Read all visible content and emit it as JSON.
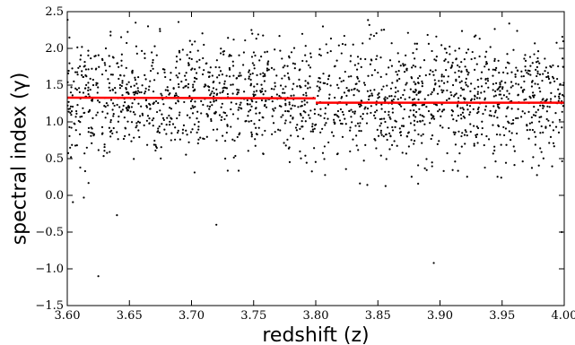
{
  "chart_data": {
    "type": "scatter",
    "title": "",
    "xlabel": "redshift (z)",
    "ylabel": "spectral index (γ)",
    "xlim": [
      3.6,
      4.0
    ],
    "ylim": [
      -1.5,
      2.5
    ],
    "x_ticks": [
      "3.60",
      "3.65",
      "3.70",
      "3.75",
      "3.80",
      "3.85",
      "3.90",
      "3.95",
      "4.00"
    ],
    "y_ticks": [
      "−1.5",
      "−1.0",
      "−0.5",
      "0.0",
      "0.5",
      "1.0",
      "1.5",
      "2.0",
      "2.5"
    ],
    "grid": false,
    "point_color": "#000000",
    "line_color": "#ff0000",
    "scatter_model": {
      "n_points": 1800,
      "x_range": [
        3.6,
        4.0
      ],
      "y_center": 1.3,
      "y_spread": 0.4,
      "y_clip": [
        -1.2,
        2.4
      ]
    },
    "outliers": [
      {
        "x": 3.625,
        "y": -1.1
      },
      {
        "x": 3.655,
        "y": 2.35
      },
      {
        "x": 3.665,
        "y": 2.3
      },
      {
        "x": 3.823,
        "y": 2.17
      },
      {
        "x": 3.853,
        "y": 2.25
      },
      {
        "x": 3.895,
        "y": -0.92
      },
      {
        "x": 3.603,
        "y": 0.52
      },
      {
        "x": 3.998,
        "y": -0.5
      },
      {
        "x": 3.64,
        "y": -0.27
      },
      {
        "x": 3.72,
        "y": -0.4
      },
      {
        "x": 3.975,
        "y": 0.52
      }
    ],
    "fit_segments": [
      {
        "x": [
          3.6,
          3.8
        ],
        "y": [
          1.33,
          1.32
        ]
      },
      {
        "x": [
          3.8,
          4.0
        ],
        "y": [
          1.26,
          1.26
        ]
      }
    ]
  }
}
